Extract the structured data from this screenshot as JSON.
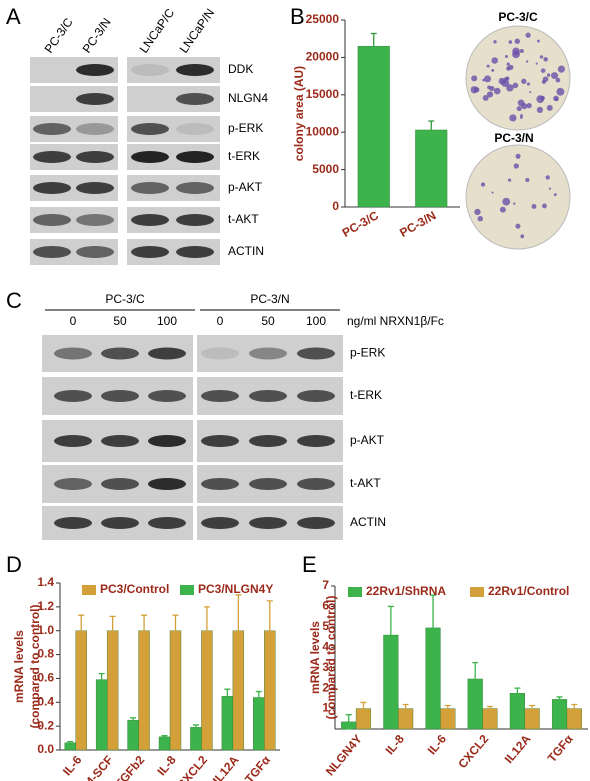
{
  "panel_labels": [
    "A",
    "B",
    "C",
    "D",
    "E"
  ],
  "panel_a": {
    "columns": [
      "PC-3/C",
      "PC-3/N",
      "LNCaP/C",
      "LNCaP/N"
    ],
    "rows": [
      "DDK",
      "NLGN4",
      "p-ERK",
      "t-ERK",
      "p-AKT",
      "t-AKT",
      "ACTIN"
    ]
  },
  "panel_b_images": [
    "PC-3/C",
    "PC-3/N"
  ],
  "panel_c": {
    "groups": [
      "PC-3/C",
      "PC-3/N"
    ],
    "doses": [
      0,
      50,
      100
    ],
    "dose_unit": "ng/ml NRXN1β/Fc",
    "rows": [
      "p-ERK",
      "t-ERK",
      "p-AKT",
      "t-AKT",
      "ACTIN"
    ]
  },
  "chart_data": [
    {
      "type": "bar",
      "ylabel": "colony area (AU)",
      "categories": [
        "PC-3/C",
        "PC-3/N"
      ],
      "values": [
        21500,
        10300
      ],
      "errors": [
        1700,
        1200
      ],
      "color": "#3cb44b",
      "ylim": [
        0,
        25000
      ],
      "yticks": [
        0,
        5000,
        10000,
        15000,
        20000,
        25000
      ]
    },
    {
      "type": "bar",
      "ylabel": [
        "mRNA levels",
        "(compared to control)"
      ],
      "categories": [
        "IL-6",
        "GM-SCF",
        "TGFb2",
        "IL-8",
        "CXCL2",
        "IL12A",
        "TGFα"
      ],
      "series": [
        {
          "name": "PC3/Control",
          "color": "#d4a03a",
          "values": [
            1,
            1,
            1,
            1,
            1,
            1,
            1
          ],
          "errors": [
            0.13,
            0.12,
            0.13,
            0.13,
            0.2,
            0.3,
            0.25
          ]
        },
        {
          "name": "PC3/NLGN4Y",
          "color": "#3cb44b",
          "values": [
            0.06,
            0.59,
            0.25,
            0.11,
            0.19,
            0.45,
            0.44
          ],
          "errors": [
            0.01,
            0.05,
            0.02,
            0.01,
            0.02,
            0.06,
            0.05
          ]
        }
      ],
      "ylim": [
        0,
        1.4
      ],
      "yticks": [
        {
          "value": 0,
          "label": "0.0"
        },
        0.2,
        0.4,
        0.6,
        0.8,
        {
          "value": 1,
          "label": "1.0"
        },
        1.2,
        1.4
      ]
    },
    {
      "type": "bar",
      "ylabel": [
        "mRNA levels",
        "(compared to control)"
      ],
      "categories": [
        "NLGN4Y",
        "IL-8",
        "IL-6",
        "CXCL2",
        "IL12A",
        "TGFα"
      ],
      "series": [
        {
          "name": "22Rv1/ShRNA",
          "color": "#3cb44b",
          "values": [
            0.35,
            4.6,
            4.95,
            2.45,
            1.75,
            1.45
          ],
          "errors": [
            0.35,
            1.4,
            1.6,
            0.8,
            0.25,
            0.12
          ]
        },
        {
          "name": "22Rv1/Control",
          "color": "#d4a03a",
          "values": [
            1,
            1,
            1,
            1,
            1,
            1
          ],
          "errors": [
            0.3,
            0.2,
            0.15,
            0.1,
            0.15,
            0.2
          ]
        }
      ],
      "ylim": [
        0,
        7
      ],
      "yticks": [
        1,
        2,
        3,
        4,
        5,
        6,
        7
      ]
    }
  ]
}
